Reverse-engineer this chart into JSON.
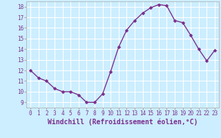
{
  "x": [
    0,
    1,
    2,
    3,
    4,
    5,
    6,
    7,
    8,
    9,
    10,
    11,
    12,
    13,
    14,
    15,
    16,
    17,
    18,
    19,
    20,
    21,
    22,
    23
  ],
  "y": [
    12,
    11.3,
    11,
    10.3,
    10,
    10,
    9.7,
    9,
    9,
    9.8,
    11.9,
    14.2,
    15.8,
    16.7,
    17.4,
    17.9,
    18.2,
    18.1,
    16.7,
    16.5,
    15.3,
    14.0,
    12.9,
    13.9
  ],
  "line_color": "#7b2d8b",
  "marker": "D",
  "marker_size": 2.5,
  "background_color": "#cceeff",
  "grid_color": "#ffffff",
  "xlabel": "Windchill (Refroidissement éolien,°C)",
  "xlabel_fontsize": 7,
  "xlim": [
    -0.5,
    23.5
  ],
  "ylim": [
    8.5,
    18.5
  ],
  "yticks": [
    9,
    10,
    11,
    12,
    13,
    14,
    15,
    16,
    17,
    18
  ],
  "xticks": [
    0,
    1,
    2,
    3,
    4,
    5,
    6,
    7,
    8,
    9,
    10,
    11,
    12,
    13,
    14,
    15,
    16,
    17,
    18,
    19,
    20,
    21,
    22,
    23
  ],
  "tick_fontsize": 5.5,
  "line_width": 1.0
}
